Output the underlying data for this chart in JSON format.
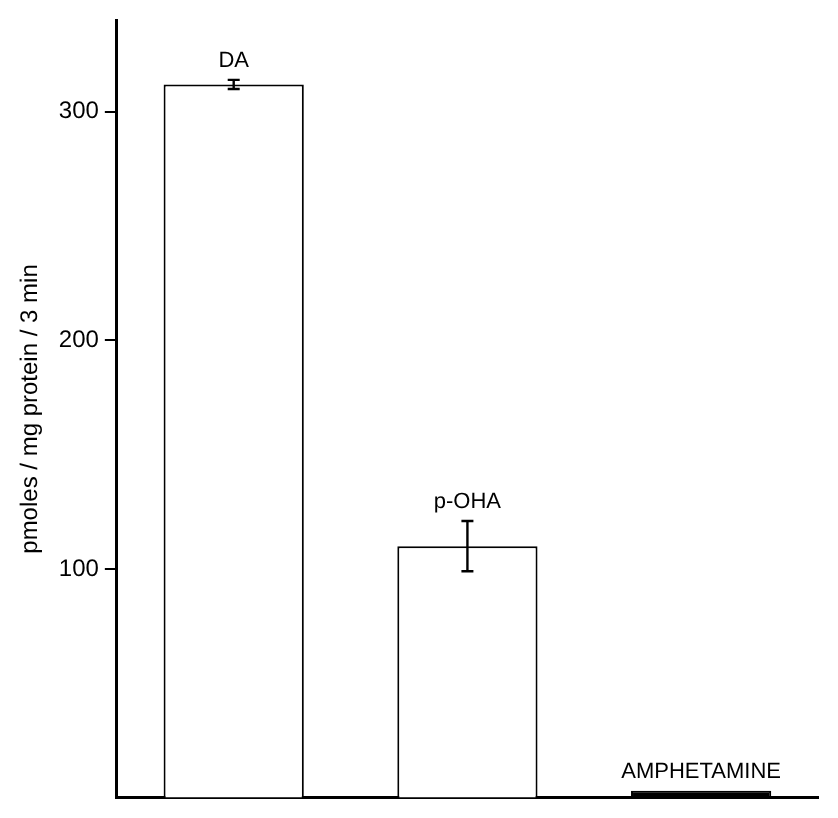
{
  "chart_data": {
    "type": "bar",
    "ylabel": "pmoles / mg protein / 3 min",
    "categories": [
      "DA",
      "p-OHA",
      "AMPHETAMINE"
    ],
    "values": [
      312,
      110,
      3
    ],
    "errors": [
      2,
      11,
      null
    ],
    "colors": [
      "#ffffff",
      "#ffffff",
      "#000000"
    ],
    "ylim": [
      0,
      340
    ],
    "yticks": [
      100,
      200,
      300
    ],
    "grid": false,
    "legend": false
  }
}
